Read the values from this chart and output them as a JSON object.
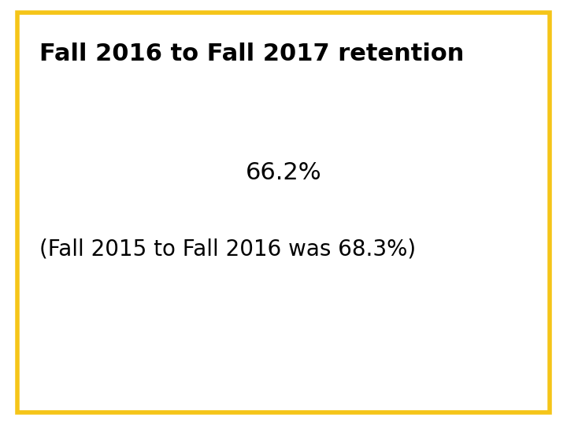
{
  "title": "Fall 2016 to Fall 2017 retention",
  "main_value": "66.2%",
  "subtitle": "(Fall 2015 to Fall 2016 was 68.3%)",
  "background_color": "#ffffff",
  "border_color": "#f5c518",
  "text_color": "#000000",
  "title_fontsize": 22,
  "main_fontsize": 22,
  "subtitle_fontsize": 20,
  "border_linewidth": 4,
  "fig_width": 7.2,
  "fig_height": 5.4,
  "dpi": 100
}
